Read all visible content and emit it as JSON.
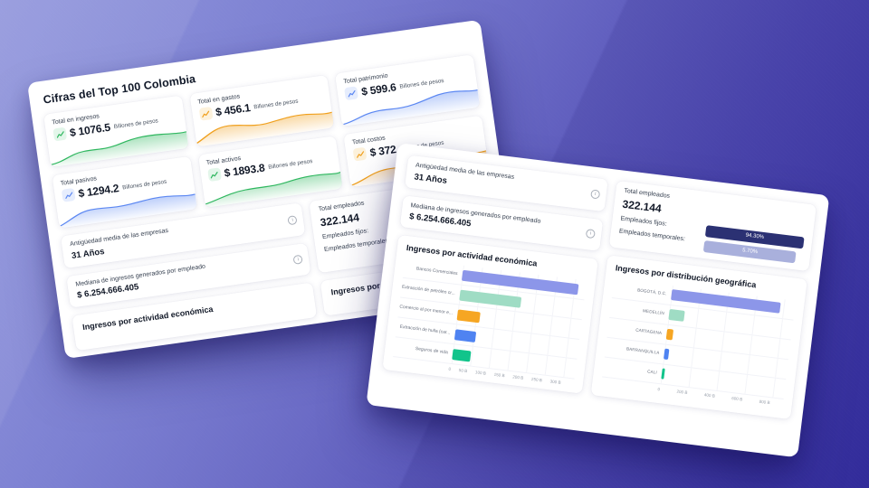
{
  "dashboard_title": "Cifras del Top 100 Colombia",
  "kpis": [
    {
      "label": "Total en ingresos",
      "value": "$ 1076.5",
      "unit": "Billones de pesos",
      "color": "#2fb75f",
      "tint": "#e3f6ea"
    },
    {
      "label": "Total en gastos",
      "value": "$ 456.1",
      "unit": "Billones de pesos",
      "color": "#f0a01e",
      "tint": "#fdf2dc"
    },
    {
      "label": "Total patrimonio",
      "value": "$ 599.6",
      "unit": "Billones de pesos",
      "color": "#5b87f2",
      "tint": "#e6edfd"
    },
    {
      "label": "Total pasivos",
      "value": "$ 1294.2",
      "unit": "Billones de pesos",
      "color": "#5b87f2",
      "tint": "#e6edfd"
    },
    {
      "label": "Total activos",
      "value": "$ 1893.8",
      "unit": "Billones de pesos",
      "color": "#2fb75f",
      "tint": "#e3f6ea"
    },
    {
      "label": "Total costos",
      "value": "$ 372",
      "unit": "Billones de pesos",
      "color": "#f0a01e",
      "tint": "#fdf2dc"
    }
  ],
  "stats": {
    "antiguedad_label": "Antigüedad media de las empresas",
    "antiguedad_value": "31 Años",
    "mediana_label": "Mediana de ingresos generados por empleado",
    "mediana_value": "$ 6.254.666.405",
    "total_empleados_label": "Total empleados",
    "total_empleados_value": "322.144",
    "fijos_label": "Empleados fijos:",
    "fijos_pct": "94.30%",
    "fijos_bar_color": "#2b3173",
    "temporales_label": "Empleados temporales:",
    "temporales_pct": "5.70%",
    "temporales_bar_color": "#a9b0dc"
  },
  "icons": {
    "info_glyph": "i"
  },
  "chart_data": [
    {
      "type": "bar",
      "orientation": "horizontal",
      "title": "Ingresos por actividad económica",
      "categories": [
        "Bancos Comerciales",
        "Extracción de petróleo cr...",
        "Comercio al por menor e...",
        "Extracción de hulla (car...",
        "Seguros de vida"
      ],
      "values": [
        310,
        165,
        62,
        55,
        48
      ],
      "unit": "Billones de pesos",
      "xlim": [
        0,
        300
      ],
      "ticks": [
        "0",
        "50 B",
        "100 B",
        "150 B",
        "200 B",
        "250 B",
        "300 B"
      ],
      "colors": [
        "#8c96e9",
        "#9fdcc4",
        "#f6a623",
        "#4f83f1",
        "#12c48b"
      ],
      "grid": true,
      "legend": false
    },
    {
      "type": "bar",
      "orientation": "horizontal",
      "title": "Ingresos por distribución geográfica",
      "categories": [
        "BOGOTÁ, D.C.",
        "MEDELLÍN",
        "CARTAGENA",
        "BARRANQUILLA",
        "CALI"
      ],
      "values": [
        780,
        110,
        45,
        32,
        20
      ],
      "unit": "Billones de pesos",
      "xlim": [
        0,
        800
      ],
      "ticks": [
        "0",
        "200 B",
        "400 B",
        "600 B",
        "800 B"
      ],
      "colors": [
        "#8c96e9",
        "#9fdcc4",
        "#f6a623",
        "#4f83f1",
        "#12c48b"
      ],
      "grid": true,
      "legend": false
    }
  ]
}
